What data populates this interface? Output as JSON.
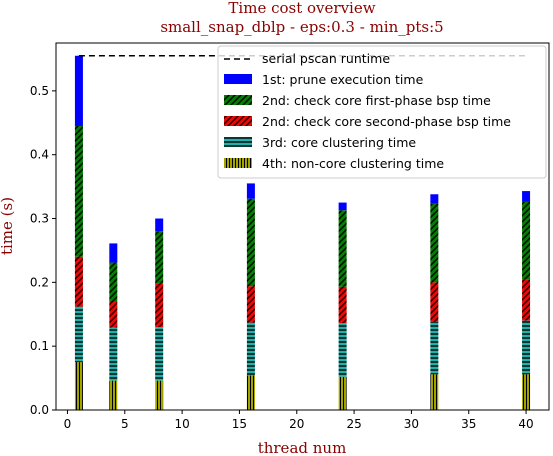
{
  "chart_data": {
    "type": "bar",
    "title": "Time cost overview",
    "subtitle": "small_snap_dblp - eps:0.3 - min_pts:5",
    "xlabel": "thread num",
    "ylabel": "time (s)",
    "xlim": [
      -1,
      42
    ],
    "ylim": [
      0,
      0.575
    ],
    "xticks": [
      "0",
      "5",
      "10",
      "15",
      "20",
      "25",
      "30",
      "35",
      "40"
    ],
    "yticks": [
      "0.0",
      "0.1",
      "0.2",
      "0.3",
      "0.4",
      "0.5"
    ],
    "x": [
      1,
      4,
      8,
      16,
      24,
      32,
      40
    ],
    "serial_runtime": 0.555,
    "legend_position": "upper-right",
    "legend": [
      "serial pscan runtime",
      "1st: prune execution time",
      "2nd: check core first-phase bsp time",
      "2nd: check core second-phase bsp time",
      "3rd: core clustering time",
      "4th: non-core clustering time"
    ],
    "series": [
      {
        "key": "noncore",
        "color": "#b5b500",
        "pattern": "vertical-lines",
        "values": [
          0.075,
          0.046,
          0.046,
          0.054,
          0.052,
          0.056,
          0.056
        ]
      },
      {
        "key": "core_cluster",
        "color": "#20b2aa",
        "pattern": "horizontal-lines",
        "values": [
          0.087,
          0.083,
          0.084,
          0.083,
          0.084,
          0.082,
          0.084
        ]
      },
      {
        "key": "second_phase",
        "color": "#ff0000",
        "pattern": "diagonal-hatch",
        "values": [
          0.078,
          0.041,
          0.068,
          0.057,
          0.057,
          0.062,
          0.064
        ]
      },
      {
        "key": "first_phase",
        "color": "#008000",
        "pattern": "diagonal-hatch",
        "values": [
          0.205,
          0.061,
          0.082,
          0.137,
          0.12,
          0.123,
          0.122
        ]
      },
      {
        "key": "prune",
        "color": "#0000ff",
        "pattern": "solid",
        "values": [
          0.11,
          0.03,
          0.02,
          0.024,
          0.012,
          0.015,
          0.017
        ]
      }
    ]
  }
}
